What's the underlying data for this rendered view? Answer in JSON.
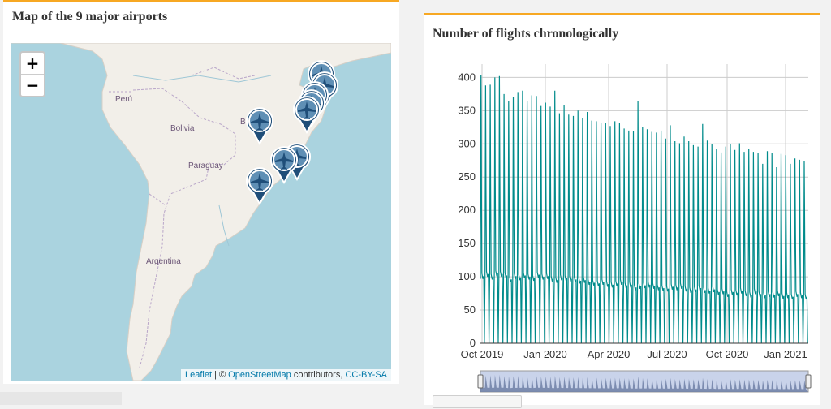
{
  "map_panel": {
    "title": "Map of the 9 major airports",
    "zoom_in": "+",
    "zoom_out": "−",
    "attribution": {
      "leaflet": "Leaflet",
      "separator": " | © ",
      "osm": "OpenStreetMap",
      "contributors": " contributors, ",
      "license": "CC-BY-SA"
    },
    "labels": {
      "peru": "Perú",
      "bolivia": "Bolivia",
      "paraguay": "Paraguay",
      "argentina": "Argentina",
      "brasil_fragment": "B"
    },
    "marker_icon": "plane-marker-icon",
    "marker_count": 9,
    "colors": {
      "water": "#aad3df",
      "land": "#f2efe9",
      "marker": "#1f4e79"
    }
  },
  "chart_panel": {
    "title": "Number of flights chronologically",
    "colors": {
      "line": "#008b8b",
      "navigator": "#6f7fa6",
      "accent": "#f7a823"
    }
  },
  "chart_data": {
    "type": "line",
    "title": "Number of flights chronologically",
    "xlabel": "",
    "ylabel": "",
    "ylim": [
      0,
      420
    ],
    "y_ticks": [
      0,
      50,
      100,
      150,
      200,
      250,
      300,
      350,
      400
    ],
    "x_ticks": [
      "Oct 2019",
      "Jan 2020",
      "Apr 2020",
      "Jul 2020",
      "Oct 2020",
      "Jan 2021"
    ],
    "x_range": [
      "2019-10-01",
      "2021-02-01"
    ],
    "grid": true,
    "series": [
      {
        "description_points": "peak values per week (daily counts oscillate between a weekday low and these peaks)",
        "peaks": [
          403,
          388,
          389,
          400,
          402,
          375,
          364,
          370,
          378,
          380,
          365,
          373,
          372,
          357,
          362,
          356,
          380,
          346,
          359,
          344,
          342,
          350,
          339,
          348,
          335,
          334,
          332,
          331,
          327,
          334,
          331,
          323,
          320,
          319,
          365,
          325,
          322,
          318,
          317,
          320,
          308,
          328,
          304,
          301,
          311,
          304,
          298,
          296,
          330,
          305,
          300,
          292,
          287,
          296,
          300,
          291,
          301,
          288,
          293,
          288,
          286,
          270,
          289,
          286,
          265,
          285,
          283,
          270,
          278,
          276,
          274
        ],
        "lows": [
          97,
          100,
          96,
          101,
          100,
          98,
          92,
          97,
          95,
          98,
          96,
          94,
          99,
          96,
          97,
          93,
          91,
          95,
          94,
          93,
          92,
          90,
          91,
          88,
          87,
          86,
          88,
          85,
          84,
          86,
          88,
          83,
          84,
          80,
          82,
          83,
          84,
          82,
          80,
          79,
          78,
          81,
          80,
          82,
          78,
          76,
          77,
          79,
          76,
          75,
          77,
          73,
          74,
          70,
          73,
          72,
          75,
          71,
          69,
          74,
          70,
          68,
          70,
          69,
          71,
          67,
          68,
          66,
          70,
          68,
          66
        ]
      }
    ]
  }
}
